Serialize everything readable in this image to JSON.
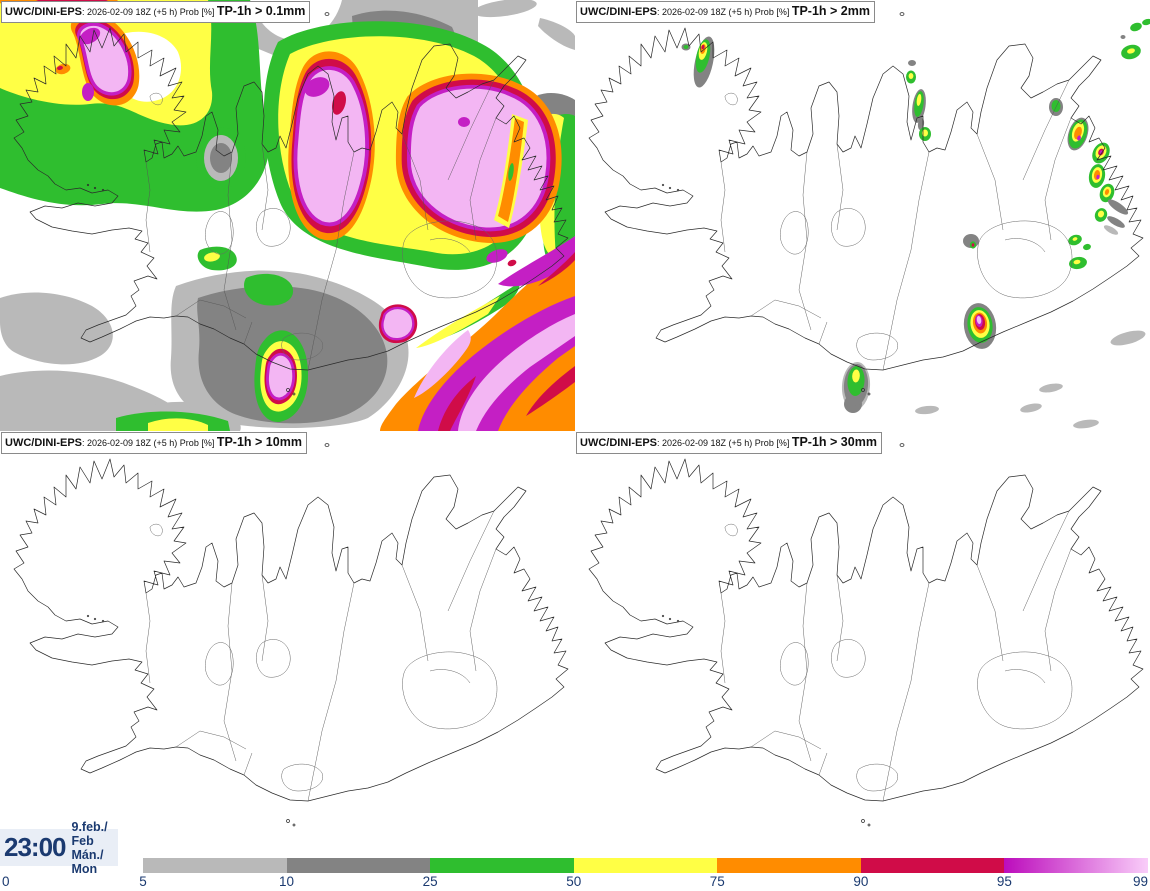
{
  "panels": [
    {
      "product": "UWC/DINI-EPS",
      "meta": ": 2026-02-09 18Z (+5 h) Prob [%] ",
      "threshold": "TP-1h > 0.1mm"
    },
    {
      "product": "UWC/DINI-EPS",
      "meta": ": 2026-02-09 18Z (+5 h) Prob [%] ",
      "threshold": "TP-1h > 2mm"
    },
    {
      "product": "UWC/DINI-EPS",
      "meta": ": 2026-02-09 18Z (+5 h) Prob [%] ",
      "threshold": "TP-1h > 10mm"
    },
    {
      "product": "UWC/DINI-EPS",
      "meta": ": 2026-02-09 18Z (+5 h) Prob [%] ",
      "threshold": "TP-1h > 30mm"
    }
  ],
  "clock": {
    "time": "23:00",
    "date": "9.feb./ Feb",
    "day": "Mán./ Mon"
  },
  "legend": {
    "ticks": [
      "0",
      "5",
      "10",
      "25",
      "50",
      "75",
      "90",
      "95",
      "99"
    ],
    "segments": [
      {
        "color": "#b9b9b9"
      },
      {
        "color": "#838383"
      },
      {
        "color": "#2fbe2f"
      },
      {
        "color": "#ffff45"
      },
      {
        "color": "#ff8c00"
      },
      {
        "color": "#d00c48"
      },
      {
        "gradient": [
          "#bc0cbc",
          "#f9cdf9"
        ]
      }
    ]
  },
  "palette": {
    "gray1": "#b9b9b9",
    "gray2": "#838383",
    "green": "#2fbe2f",
    "yellow": "#ffff45",
    "orange": "#ff8c00",
    "crimson": "#d00c48",
    "magenta": "#c41fc4",
    "pink": "#f3b6f3",
    "navy": "#1b3a70",
    "line": "#2b2b2b",
    "timebox_bg": "#e9eef6"
  }
}
